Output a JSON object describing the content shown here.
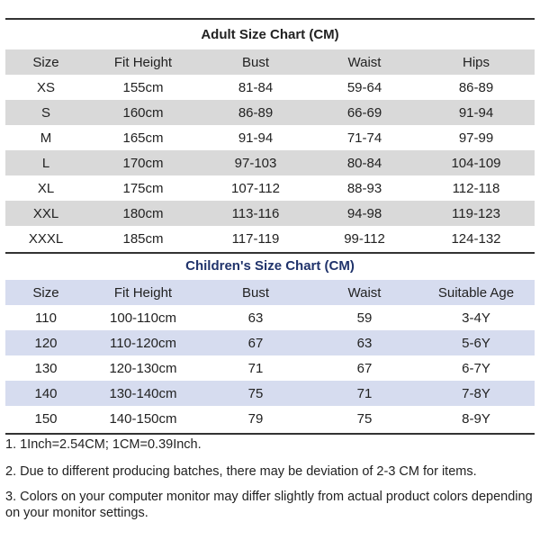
{
  "adult": {
    "title": "Adult Size Chart (CM)",
    "headers": [
      "Size",
      "Fit Height",
      "Bust",
      "Waist",
      "Hips"
    ],
    "rows": [
      [
        "XS",
        "155cm",
        "81-84",
        "59-64",
        "86-89"
      ],
      [
        "S",
        "160cm",
        "86-89",
        "66-69",
        "91-94"
      ],
      [
        "M",
        "165cm",
        "91-94",
        "71-74",
        "97-99"
      ],
      [
        "L",
        "170cm",
        "97-103",
        "80-84",
        "104-109"
      ],
      [
        "XL",
        "175cm",
        "107-112",
        "88-93",
        "112-118"
      ],
      [
        "XXL",
        "180cm",
        "113-116",
        "94-98",
        "119-123"
      ],
      [
        "XXXL",
        "185cm",
        "117-119",
        "99-112",
        "124-132"
      ]
    ]
  },
  "children": {
    "title": "Children's Size Chart (CM)",
    "headers": [
      "Size",
      "Fit Height",
      "Bust",
      "Waist",
      "Suitable Age"
    ],
    "rows": [
      [
        "110",
        "100-110cm",
        "63",
        "59",
        "3-4Y"
      ],
      [
        "120",
        "110-120cm",
        "67",
        "63",
        "5-6Y"
      ],
      [
        "130",
        "120-130cm",
        "71",
        "67",
        "6-7Y"
      ],
      [
        "140",
        "130-140cm",
        "75",
        "71",
        "7-8Y"
      ],
      [
        "150",
        "140-150cm",
        "79",
        "75",
        "8-9Y"
      ]
    ]
  },
  "notes": [
    "1. 1Inch=2.54CM; 1CM=0.39Inch.",
    "2. Due to different producing batches, there may be deviation of 2-3 CM for items.",
    "3. Colors on your computer monitor may differ slightly from actual product colors depending on your monitor settings."
  ],
  "colors": {
    "adult_row_shade": "#d9d9d9",
    "children_row_shade": "#d6dcef",
    "children_title": "#20336b"
  }
}
